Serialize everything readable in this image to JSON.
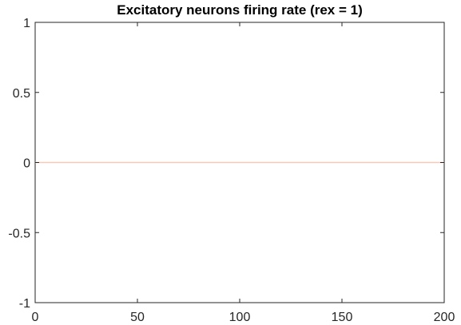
{
  "chart_data": {
    "type": "line",
    "title": "Excitatory neurons firing rate (rex = 1)",
    "xlabel": "",
    "ylabel": "",
    "xlim": [
      0,
      200
    ],
    "ylim": [
      -1,
      1
    ],
    "x_ticks": [
      0,
      50,
      100,
      150,
      200
    ],
    "x_tick_labels": [
      "0",
      "50",
      "100",
      "150",
      "200"
    ],
    "y_ticks": [
      -1,
      -0.5,
      0,
      0.5,
      1
    ],
    "y_tick_labels": [
      "-1",
      "-0.5",
      "0",
      "0.5",
      "1"
    ],
    "grid": false,
    "box": true,
    "series": [
      {
        "color": "#f7c9b8",
        "x": [
          0,
          200
        ],
        "y": [
          0,
          0
        ]
      }
    ]
  }
}
